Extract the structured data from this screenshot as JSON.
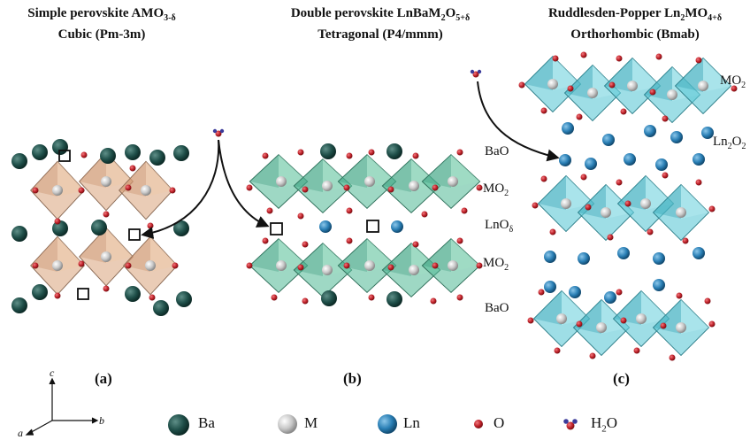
{
  "panels": [
    {
      "title_line1_main": "Simple perovskite AMO",
      "title_line1_sub": "3-δ",
      "title_line2": "Cubic (Pm-3m)",
      "label": "(a)"
    },
    {
      "title_line1_main": "Double perovskite LnBaM",
      "title_line1_sub1": "2",
      "title_line1_mid": "O",
      "title_line1_sub2": "5+δ",
      "title_line2": "Tetragonal (P4/mmm)",
      "label": "(b)"
    },
    {
      "title_line1_main": "Ruddlesden-Popper Ln",
      "title_line1_sub1": "2",
      "title_line1_mid": "MO",
      "title_line1_sub2": "4+δ",
      "title_line2": "Orthorhombic (Bmab)",
      "label": "(c)"
    }
  ],
  "layers_b": [
    {
      "main": "MO",
      "sub": "2"
    },
    {
      "main": "LnO",
      "sub": "δ"
    },
    {
      "main": "MO",
      "sub": "2"
    }
  ],
  "layers_c": {
    "bao_top": "BaO",
    "mo2": {
      "main": "MO",
      "sub": "2"
    },
    "ln2o2": {
      "main": "Ln",
      "sub1": "2",
      "mid": "O",
      "sub2": "2"
    },
    "bao_bottom": "BaO"
  },
  "axes": {
    "c": "c",
    "b": "b",
    "a": "a"
  },
  "legend": [
    {
      "label": "Ba",
      "color": "#1f4f49",
      "icon": "ba-atom-icon"
    },
    {
      "label": "M",
      "color": "#c8c8c8",
      "icon": "m-atom-icon"
    },
    {
      "label": "Ln",
      "color": "#2a7fb5",
      "icon": "ln-atom-icon"
    },
    {
      "label": "O",
      "color": "#c0222a",
      "icon": "o-atom-icon"
    },
    {
      "label_main": "H",
      "label_sub": "2",
      "label_tail": "O",
      "icon": "h2o-molecule-icon"
    }
  ],
  "colors": {
    "ba": "#1f4f49",
    "m": "#c8c8c8",
    "ln": "#2a7fb5",
    "o": "#c0222a",
    "octa_a": "#d9a27a",
    "octa_b": "#4fb894",
    "octa_c": "#5ec8d6"
  }
}
